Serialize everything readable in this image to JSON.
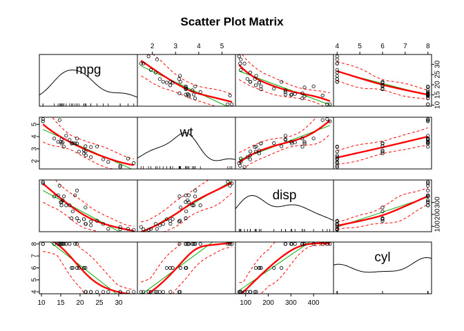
{
  "chart_data": {
    "type": "scatter",
    "title": "Scatter Plot Matrix",
    "variables": [
      "mpg",
      "wt",
      "disp",
      "cyl"
    ],
    "ranges": {
      "mpg": [
        10.4,
        33.9
      ],
      "wt": [
        1.513,
        5.424
      ],
      "disp": [
        71.1,
        472
      ],
      "cyl": [
        4,
        8
      ]
    },
    "tick_values": {
      "mpg": [
        10,
        15,
        20,
        25,
        30
      ],
      "wt": [
        2,
        3,
        4,
        5
      ],
      "disp": [
        100,
        200,
        300,
        400
      ],
      "cyl": [
        4,
        5,
        6,
        7,
        8
      ]
    },
    "tick_labels": {
      "top_wt": [
        "2",
        "3",
        "4",
        "5"
      ],
      "top_cyl": [
        "4",
        "5",
        "6",
        "7",
        "8"
      ],
      "bottom_mpg": [
        "10",
        "15",
        "20",
        "25",
        "30"
      ],
      "bottom_disp": [
        "100",
        "200",
        "300",
        "400"
      ],
      "left_wt": [
        "2",
        "3",
        "4",
        "5"
      ],
      "left_cyl": [
        "4",
        "5",
        "6",
        "7",
        "8"
      ],
      "right_mpg": [
        "10",
        "15",
        "20",
        "25",
        "30"
      ],
      "right_disp": [
        "100",
        "200",
        "300"
      ]
    },
    "points": {
      "mpg": [
        21.0,
        21.0,
        22.8,
        21.4,
        18.7,
        18.1,
        14.3,
        24.4,
        22.8,
        19.2,
        17.8,
        16.4,
        17.3,
        15.2,
        10.4,
        10.4,
        14.7,
        32.4,
        30.4,
        33.9,
        21.5,
        15.5,
        15.2,
        13.3,
        19.2,
        27.3,
        26.0,
        30.4,
        15.8,
        19.7,
        15.0,
        21.4
      ],
      "wt": [
        2.62,
        2.875,
        2.32,
        3.215,
        3.44,
        3.46,
        3.57,
        3.19,
        3.15,
        3.44,
        3.44,
        4.07,
        3.73,
        3.78,
        5.25,
        5.424,
        5.345,
        2.2,
        1.615,
        1.835,
        2.465,
        3.52,
        3.435,
        3.84,
        3.845,
        1.935,
        2.14,
        1.513,
        3.17,
        2.77,
        3.57,
        2.78
      ],
      "disp": [
        160,
        160,
        108,
        258,
        360,
        225,
        360,
        146.7,
        140.8,
        167.6,
        167.6,
        275.8,
        275.8,
        275.8,
        472,
        460,
        440,
        78.7,
        75.7,
        71.1,
        120.1,
        318,
        304,
        350,
        400,
        79,
        120.3,
        95.1,
        351,
        145,
        301,
        121
      ],
      "cyl": [
        6,
        6,
        4,
        6,
        8,
        6,
        8,
        4,
        4,
        6,
        6,
        8,
        8,
        8,
        8,
        8,
        8,
        4,
        4,
        4,
        4,
        8,
        8,
        8,
        8,
        4,
        4,
        4,
        8,
        6,
        8,
        4
      ]
    },
    "series": [
      {
        "style": "points",
        "color": "#000000"
      },
      {
        "style": "linear fit",
        "color": "#00aa00"
      },
      {
        "style": "smoother",
        "color": "#ff0000"
      },
      {
        "style": "spread",
        "color": "#ff0000"
      }
    ],
    "diagonal": "density"
  }
}
